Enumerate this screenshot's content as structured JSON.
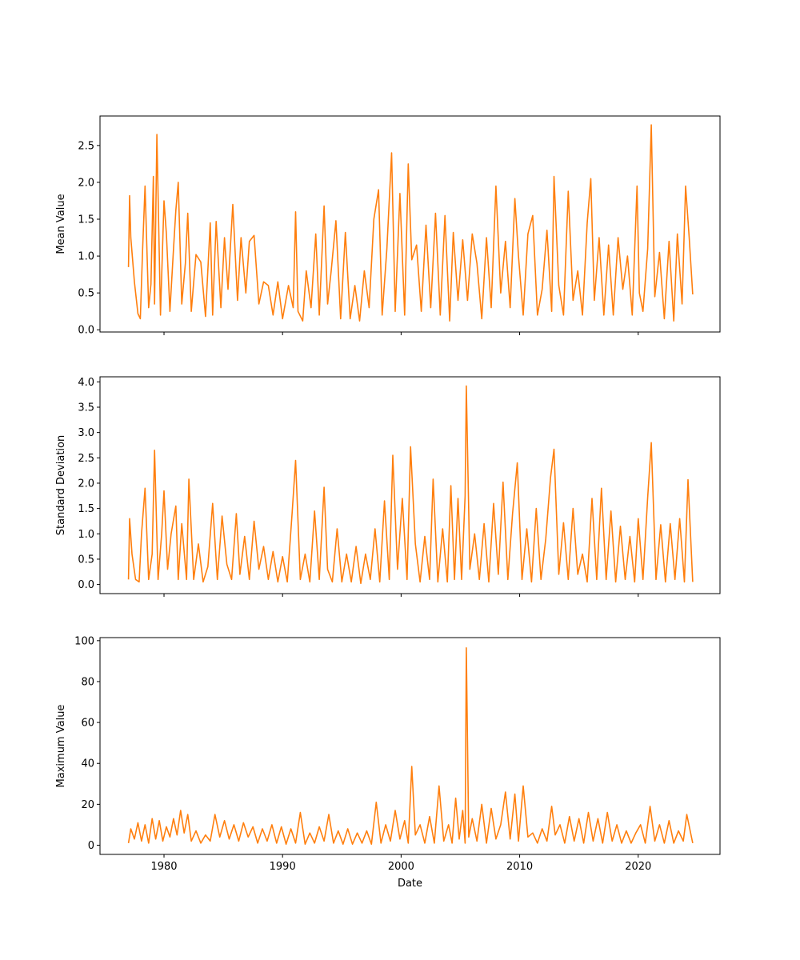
{
  "figure": {
    "xlabel": "Date",
    "line_color": "#ff7f0e",
    "x_ticks": [
      "1980",
      "1990",
      "2000",
      "2010",
      "2020"
    ],
    "x_tick_values": [
      1980,
      1990,
      2000,
      2010,
      2020
    ]
  },
  "chart_data": [
    {
      "type": "line",
      "ylabel": "Mean Value",
      "xlim": [
        1974.6,
        2026.9
      ],
      "ylim": [
        -0.03,
        2.9
      ],
      "yticks": [
        0.0,
        0.5,
        1.0,
        1.5,
        2.0,
        2.5
      ],
      "ytick_labels": [
        "0.0",
        "0.5",
        "1.0",
        "1.5",
        "2.0",
        "2.5"
      ],
      "show_xtick_labels": false,
      "grid": false,
      "x": [
        1977.0,
        1977.1,
        1977.2,
        1977.5,
        1977.8,
        1978.0,
        1978.2,
        1978.4,
        1978.7,
        1978.9,
        1979.1,
        1979.2,
        1979.4,
        1979.7,
        1980.0,
        1980.2,
        1980.5,
        1980.8,
        1981.0,
        1981.2,
        1981.5,
        1981.8,
        1982.0,
        1982.3,
        1982.7,
        1983.1,
        1983.5,
        1983.9,
        1984.1,
        1984.4,
        1984.8,
        1985.1,
        1985.4,
        1985.8,
        1986.2,
        1986.5,
        1986.9,
        1987.2,
        1987.6,
        1988.0,
        1988.4,
        1988.8,
        1989.2,
        1989.6,
        1990.0,
        1990.5,
        1990.9,
        1991.1,
        1991.3,
        1991.7,
        1992.0,
        1992.4,
        1992.8,
        1993.1,
        1993.5,
        1993.8,
        1994.1,
        1994.5,
        1994.9,
        1995.3,
        1995.7,
        1996.1,
        1996.5,
        1996.9,
        1997.3,
        1997.7,
        1998.1,
        1998.4,
        1998.8,
        1999.2,
        1999.5,
        1999.9,
        2000.3,
        2000.6,
        2000.9,
        2001.3,
        2001.7,
        2002.1,
        2002.5,
        2002.9,
        2003.3,
        2003.7,
        2004.1,
        2004.4,
        2004.8,
        2005.2,
        2005.6,
        2006.0,
        2006.4,
        2006.8,
        2007.2,
        2007.6,
        2008.0,
        2008.4,
        2008.8,
        2009.2,
        2009.6,
        2009.9,
        2010.3,
        2010.7,
        2011.1,
        2011.5,
        2011.9,
        2012.3,
        2012.7,
        2012.9,
        2013.3,
        2013.7,
        2014.1,
        2014.5,
        2014.9,
        2015.3,
        2015.7,
        2016.0,
        2016.3,
        2016.7,
        2017.1,
        2017.5,
        2017.9,
        2018.3,
        2018.7,
        2019.1,
        2019.5,
        2019.9,
        2020.1,
        2020.4,
        2020.8,
        2021.1,
        2021.4,
        2021.8,
        2022.2,
        2022.6,
        2023.0,
        2023.3,
        2023.7,
        2024.0,
        2024.3,
        2024.6
      ],
      "y": [
        0.85,
        1.82,
        1.25,
        0.65,
        0.22,
        0.15,
        1.1,
        1.95,
        0.3,
        0.62,
        2.08,
        0.35,
        2.65,
        0.2,
        1.75,
        1.3,
        0.25,
        1.1,
        1.62,
        2.0,
        0.35,
        0.9,
        1.58,
        0.25,
        1.02,
        0.92,
        0.18,
        1.45,
        0.2,
        1.47,
        0.3,
        1.25,
        0.55,
        1.7,
        0.4,
        1.25,
        0.5,
        1.2,
        1.28,
        0.35,
        0.65,
        0.6,
        0.2,
        0.65,
        0.15,
        0.6,
        0.3,
        1.6,
        0.25,
        0.12,
        0.8,
        0.3,
        1.3,
        0.2,
        1.68,
        0.35,
        0.8,
        1.48,
        0.15,
        1.32,
        0.15,
        0.6,
        0.12,
        0.8,
        0.3,
        1.5,
        1.9,
        0.2,
        1.1,
        2.4,
        0.25,
        1.85,
        0.2,
        2.25,
        0.95,
        1.15,
        0.25,
        1.42,
        0.3,
        1.58,
        0.2,
        1.55,
        0.12,
        1.32,
        0.4,
        1.22,
        0.4,
        1.3,
        0.9,
        0.15,
        1.25,
        0.3,
        1.95,
        0.5,
        1.2,
        0.3,
        1.78,
        1.0,
        0.2,
        1.3,
        1.55,
        0.2,
        0.55,
        1.35,
        0.25,
        2.08,
        0.6,
        0.2,
        1.88,
        0.4,
        0.8,
        0.2,
        1.45,
        2.05,
        0.4,
        1.25,
        0.2,
        1.15,
        0.2,
        1.25,
        0.55,
        1.0,
        0.2,
        1.95,
        0.5,
        0.25,
        1.1,
        2.78,
        0.45,
        1.05,
        0.15,
        1.2,
        0.12,
        1.3,
        0.35,
        1.95,
        1.25,
        0.48
      ]
    },
    {
      "type": "line",
      "ylabel": "Standard Deviation",
      "xlim": [
        1974.6,
        2026.9
      ],
      "ylim": [
        -0.18,
        4.1
      ],
      "yticks": [
        0.0,
        0.5,
        1.0,
        1.5,
        2.0,
        2.5,
        3.0,
        3.5,
        4.0
      ],
      "ytick_labels": [
        "0.0",
        "0.5",
        "1.0",
        "1.5",
        "2.0",
        "2.5",
        "3.0",
        "3.5",
        "4.0"
      ],
      "show_xtick_labels": false,
      "grid": false,
      "x": [
        1977.0,
        1977.1,
        1977.3,
        1977.6,
        1977.9,
        1978.1,
        1978.4,
        1978.7,
        1979.0,
        1979.2,
        1979.5,
        1979.8,
        1980.0,
        1980.3,
        1980.6,
        1981.0,
        1981.2,
        1981.5,
        1981.9,
        1982.1,
        1982.5,
        1982.9,
        1983.3,
        1983.7,
        1984.1,
        1984.5,
        1984.9,
        1985.3,
        1985.7,
        1986.1,
        1986.4,
        1986.8,
        1987.2,
        1987.6,
        1988.0,
        1988.4,
        1988.8,
        1989.2,
        1989.6,
        1990.0,
        1990.4,
        1990.8,
        1991.1,
        1991.5,
        1991.9,
        1992.3,
        1992.7,
        1993.1,
        1993.5,
        1993.8,
        1994.2,
        1994.6,
        1995.0,
        1995.4,
        1995.8,
        1996.2,
        1996.6,
        1997.0,
        1997.4,
        1997.8,
        1998.2,
        1998.6,
        1999.0,
        1999.3,
        1999.7,
        2000.1,
        2000.5,
        2000.8,
        2001.2,
        2001.6,
        2002.0,
        2002.4,
        2002.7,
        2003.1,
        2003.5,
        2003.9,
        2004.2,
        2004.5,
        2004.8,
        2005.1,
        2005.4,
        2005.5,
        2005.8,
        2006.2,
        2006.6,
        2007.0,
        2007.4,
        2007.8,
        2008.2,
        2008.6,
        2009.0,
        2009.4,
        2009.8,
        2010.2,
        2010.6,
        2011.0,
        2011.4,
        2011.8,
        2012.2,
        2012.6,
        2012.9,
        2013.3,
        2013.7,
        2014.1,
        2014.5,
        2014.9,
        2015.3,
        2015.7,
        2016.1,
        2016.5,
        2016.9,
        2017.3,
        2017.7,
        2018.1,
        2018.5,
        2018.9,
        2019.3,
        2019.7,
        2020.0,
        2020.4,
        2020.8,
        2021.1,
        2021.5,
        2021.9,
        2022.3,
        2022.7,
        2023.1,
        2023.5,
        2023.9,
        2024.2,
        2024.6
      ],
      "y": [
        0.1,
        1.3,
        0.6,
        0.1,
        0.05,
        1.0,
        1.9,
        0.1,
        0.6,
        2.65,
        0.1,
        1.0,
        1.85,
        0.3,
        1.0,
        1.55,
        0.1,
        1.2,
        0.1,
        2.08,
        0.1,
        0.8,
        0.05,
        0.35,
        1.6,
        0.1,
        1.35,
        0.4,
        0.1,
        1.4,
        0.2,
        0.95,
        0.1,
        1.25,
        0.3,
        0.75,
        0.1,
        0.65,
        0.05,
        0.55,
        0.05,
        1.4,
        2.45,
        0.1,
        0.6,
        0.05,
        1.45,
        0.1,
        1.92,
        0.3,
        0.05,
        1.1,
        0.05,
        0.6,
        0.05,
        0.75,
        0.02,
        0.6,
        0.1,
        1.1,
        0.05,
        1.65,
        0.1,
        2.55,
        0.3,
        1.7,
        0.1,
        2.72,
        0.8,
        0.05,
        0.95,
        0.1,
        2.08,
        0.05,
        1.1,
        0.05,
        1.95,
        0.1,
        1.7,
        0.1,
        1.75,
        3.92,
        0.3,
        1.0,
        0.1,
        1.2,
        0.05,
        1.6,
        0.2,
        2.02,
        0.1,
        1.4,
        2.4,
        0.1,
        1.1,
        0.05,
        1.5,
        0.1,
        0.9,
        2.1,
        2.67,
        0.2,
        1.22,
        0.1,
        1.5,
        0.2,
        0.6,
        0.05,
        1.7,
        0.1,
        1.9,
        0.1,
        1.45,
        0.05,
        1.15,
        0.1,
        0.95,
        0.05,
        1.3,
        0.1,
        1.72,
        2.8,
        0.1,
        1.18,
        0.05,
        1.2,
        0.1,
        1.3,
        0.05,
        2.07,
        0.05
      ]
    },
    {
      "type": "line",
      "ylabel": "Maximum Value",
      "xlabel": "Date",
      "xlim": [
        1974.6,
        2026.9
      ],
      "ylim": [
        -4.5,
        101.5
      ],
      "yticks": [
        0,
        20,
        40,
        60,
        80,
        100
      ],
      "ytick_labels": [
        "0",
        "20",
        "40",
        "60",
        "80",
        "100"
      ],
      "show_xtick_labels": true,
      "grid": false,
      "x": [
        1977.0,
        1977.2,
        1977.5,
        1977.8,
        1978.1,
        1978.4,
        1978.7,
        1979.0,
        1979.3,
        1979.6,
        1979.9,
        1980.2,
        1980.5,
        1980.8,
        1981.1,
        1981.4,
        1981.7,
        1982.0,
        1982.3,
        1982.7,
        1983.1,
        1983.5,
        1983.9,
        1984.3,
        1984.7,
        1985.1,
        1985.5,
        1985.9,
        1986.3,
        1986.7,
        1987.1,
        1987.5,
        1987.9,
        1988.3,
        1988.7,
        1989.1,
        1989.5,
        1989.9,
        1990.3,
        1990.7,
        1991.1,
        1991.5,
        1991.9,
        1992.3,
        1992.7,
        1993.1,
        1993.5,
        1993.9,
        1994.3,
        1994.7,
        1995.1,
        1995.5,
        1995.9,
        1996.3,
        1996.7,
        1997.1,
        1997.5,
        1997.9,
        1998.3,
        1998.7,
        1999.1,
        1999.5,
        1999.9,
        2000.3,
        2000.6,
        2000.9,
        2001.2,
        2001.6,
        2002.0,
        2002.4,
        2002.8,
        2003.2,
        2003.6,
        2004.0,
        2004.3,
        2004.6,
        2004.9,
        2005.2,
        2005.4,
        2005.5,
        2005.7,
        2006.0,
        2006.4,
        2006.8,
        2007.2,
        2007.6,
        2008.0,
        2008.4,
        2008.8,
        2009.2,
        2009.6,
        2009.9,
        2010.3,
        2010.7,
        2011.1,
        2011.5,
        2011.9,
        2012.3,
        2012.7,
        2013.0,
        2013.4,
        2013.8,
        2014.2,
        2014.6,
        2015.0,
        2015.4,
        2015.8,
        2016.2,
        2016.6,
        2017.0,
        2017.4,
        2017.8,
        2018.2,
        2018.6,
        2019.0,
        2019.4,
        2019.8,
        2020.2,
        2020.6,
        2021.0,
        2021.4,
        2021.8,
        2022.2,
        2022.6,
        2023.0,
        2023.4,
        2023.8,
        2024.1,
        2024.6
      ],
      "y": [
        1.0,
        8.0,
        3.0,
        11.0,
        2.0,
        10.0,
        1.0,
        13.0,
        3.0,
        12.0,
        2.0,
        9.0,
        4.0,
        13.0,
        5.0,
        17.0,
        6.0,
        15.0,
        2.0,
        7.0,
        1.0,
        5.0,
        2.0,
        15.0,
        4.0,
        12.0,
        3.0,
        10.0,
        2.0,
        11.0,
        4.0,
        9.0,
        1.0,
        8.0,
        2.0,
        10.0,
        1.0,
        9.0,
        0.5,
        8.0,
        1.0,
        16.0,
        0.5,
        6.0,
        1.0,
        9.0,
        2.0,
        15.0,
        1.0,
        7.0,
        0.5,
        8.0,
        0.5,
        6.0,
        1.0,
        7.0,
        0.5,
        21.0,
        1.0,
        10.0,
        2.0,
        17.0,
        3.0,
        12.0,
        1.0,
        38.5,
        5.0,
        10.0,
        1.0,
        14.0,
        1.0,
        29.0,
        2.0,
        10.0,
        1.0,
        23.0,
        3.0,
        17.0,
        1.0,
        96.5,
        4.0,
        13.0,
        2.0,
        20.0,
        1.0,
        18.0,
        3.0,
        10.0,
        26.0,
        3.0,
        25.0,
        2.0,
        29.0,
        4.0,
        6.0,
        1.0,
        8.0,
        2.0,
        19.0,
        5.0,
        10.0,
        1.0,
        14.0,
        2.0,
        13.0,
        1.0,
        16.0,
        2.0,
        13.0,
        1.0,
        16.0,
        2.0,
        10.0,
        1.0,
        7.0,
        1.0,
        6.0,
        10.0,
        1.0,
        19.0,
        2.0,
        10.0,
        1.0,
        12.0,
        1.0,
        7.0,
        2.0,
        15.0,
        1.0
      ]
    }
  ]
}
